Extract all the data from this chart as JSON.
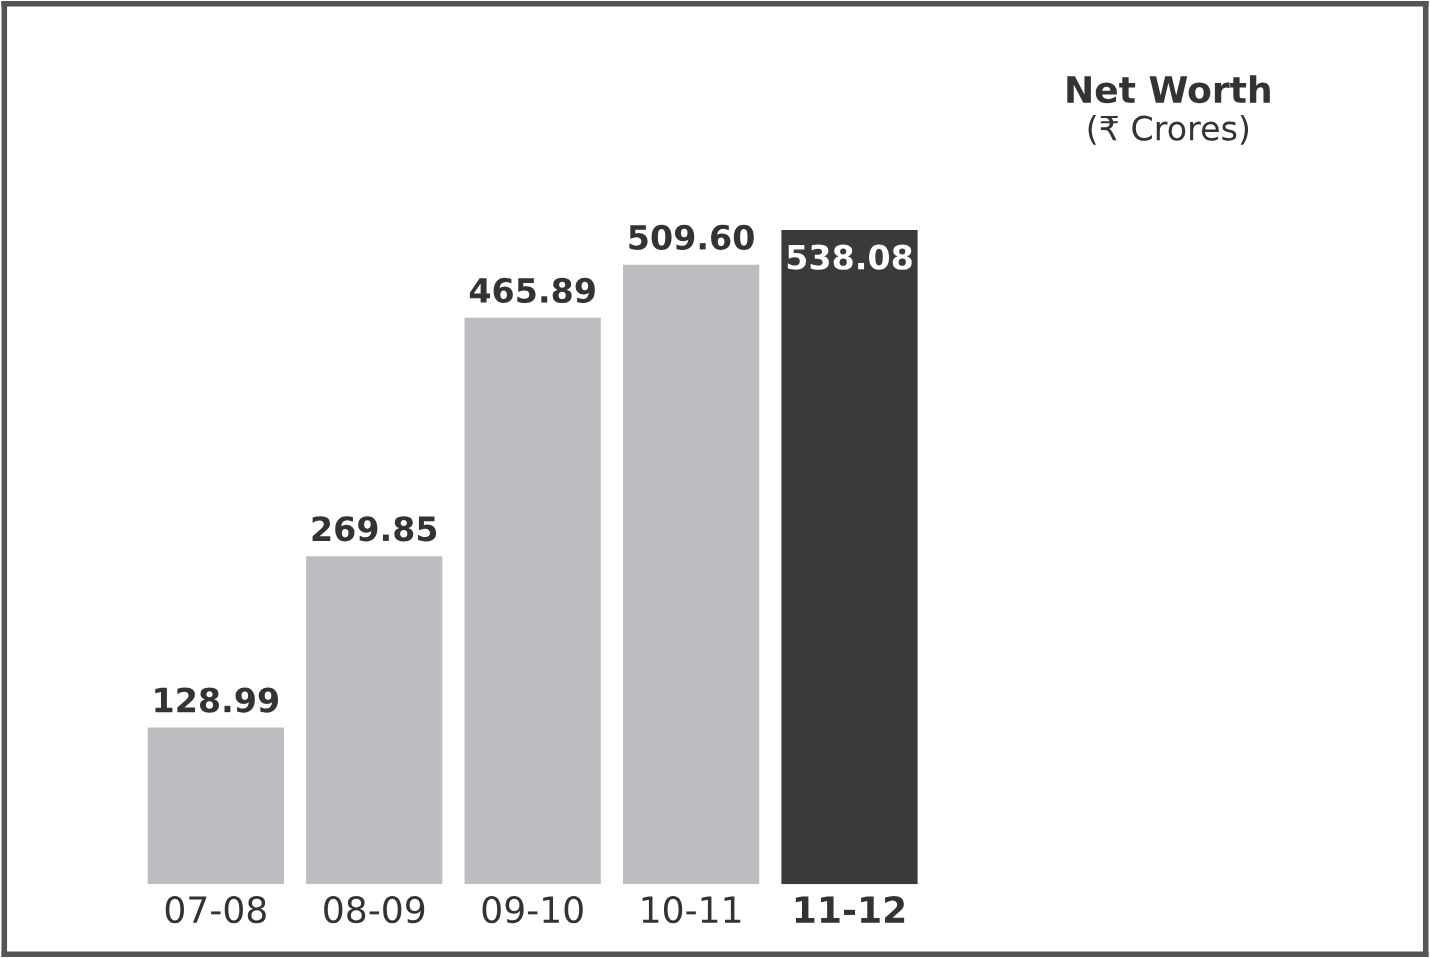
{
  "chart_data": {
    "type": "bar",
    "title": "Net Worth",
    "subtitle": "(₹ Crores)",
    "categories": [
      "07-08",
      "08-09",
      "09-10",
      "10-11",
      "11-12"
    ],
    "values": [
      128.99,
      269.85,
      465.89,
      509.6,
      538.08
    ],
    "colors": [
      "#bcbdc0",
      "#bcbdc0",
      "#bcbdc0",
      "#bcbdc0",
      "#3a3a3b"
    ],
    "value_labels": [
      "128.99",
      "269.85",
      "465.89",
      "509.60",
      "538.08"
    ],
    "grid": false,
    "legend": false
  }
}
